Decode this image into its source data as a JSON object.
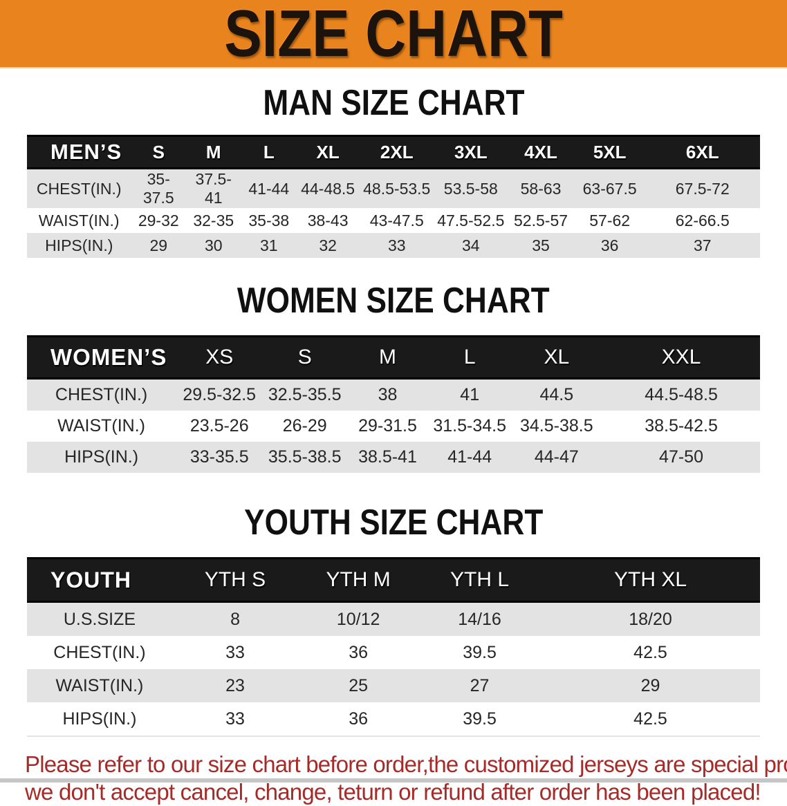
{
  "banner": {
    "title": "SIZE CHART"
  },
  "sections": [
    {
      "heading": "MAN SIZE CHART",
      "header_label": "MEN’S",
      "columns": [
        "S",
        "M",
        "L",
        "XL",
        "2XL",
        "3XL",
        "4XL",
        "5XL",
        "6XL"
      ],
      "rows": [
        {
          "label": "CHEST(IN.)",
          "values": [
            "35-37.5",
            "37.5-41",
            "41-44",
            "44-48.5",
            "48.5-53.5",
            "53.5-58",
            "58-63",
            "63-67.5",
            "67.5-72"
          ]
        },
        {
          "label": "WAIST(IN.)",
          "values": [
            "29-32",
            "32-35",
            "35-38",
            "38-43",
            "43-47.5",
            "47.5-52.5",
            "52.5-57",
            "57-62",
            "62-66.5"
          ]
        },
        {
          "label": "HIPS(IN.)",
          "values": [
            "29",
            "30",
            "31",
            "32",
            "33",
            "34",
            "35",
            "36",
            "37"
          ]
        }
      ]
    },
    {
      "heading": "WOMEN SIZE CHART",
      "header_label": "WOMEN’S",
      "columns": [
        "XS",
        "S",
        "M",
        "L",
        "XL",
        "XXL"
      ],
      "rows": [
        {
          "label": "CHEST(IN.)",
          "values": [
            "29.5-32.5",
            "32.5-35.5",
            "38",
            "41",
            "44.5",
            "44.5-48.5"
          ]
        },
        {
          "label": "WAIST(IN.)",
          "values": [
            "23.5-26",
            "26-29",
            "29-31.5",
            "31.5-34.5",
            "34.5-38.5",
            "38.5-42.5"
          ]
        },
        {
          "label": "HIPS(IN.)",
          "values": [
            "33-35.5",
            "35.5-38.5",
            "38.5-41",
            "41-44",
            "44-47",
            "47-50"
          ]
        }
      ]
    },
    {
      "heading": "YOUTH SIZE CHART",
      "header_label": "YOUTH",
      "columns": [
        "YTH S",
        "YTH M",
        "YTH L",
        "YTH XL"
      ],
      "rows": [
        {
          "label": "U.S.SIZE",
          "values": [
            "8",
            "10/12",
            "14/16",
            "18/20"
          ]
        },
        {
          "label": "CHEST(IN.)",
          "values": [
            "33",
            "36",
            "39.5",
            "42.5"
          ]
        },
        {
          "label": "WAIST(IN.)",
          "values": [
            "23",
            "25",
            "27",
            "29"
          ]
        },
        {
          "label": "HIPS(IN.)",
          "values": [
            "33",
            "36",
            "39.5",
            "42.5"
          ]
        }
      ]
    }
  ],
  "disclaimer": {
    "line1": "Please refer to our size chart before order,the customized jerseys are special products,",
    "line2": "we don't accept cancel, change, teturn or refund after order has been placed!"
  },
  "colors": {
    "banner_bg": "#E9831D",
    "header_band_bg": "#1A1A1A",
    "stripe_gray": "#E3E3E3",
    "disclaimer_red": "#A52B28"
  }
}
